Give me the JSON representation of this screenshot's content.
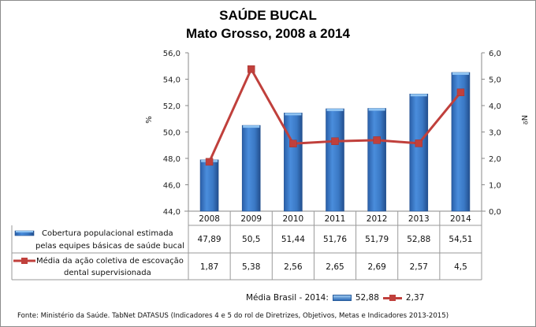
{
  "title": "SAÚDE BUCAL",
  "subtitle": "Mato Grosso, 2008 a 2014",
  "axes": {
    "left_label": "%",
    "right_label": "Nº",
    "left_ticks": [
      "56,0",
      "54,0",
      "52,0",
      "50,0",
      "48,0",
      "46,0",
      "44,0"
    ],
    "right_ticks": [
      "6,0",
      "5,0",
      "4,0",
      "3,0",
      "2,0",
      "1,0",
      "0,0"
    ]
  },
  "table": {
    "years": [
      "2008",
      "2009",
      "2010",
      "2011",
      "2012",
      "2013",
      "2014"
    ],
    "row1_label_a": "Cobertura populacional estimada",
    "row1_label_b": "pelas equipes básicas de saúde bucal",
    "row1_values": [
      "47,89",
      "50,5",
      "51,44",
      "51,76",
      "51,79",
      "52,88",
      "54,51"
    ],
    "row2_label_a": "Média da ação coletiva de escovação",
    "row2_label_b": "dental supervisionada",
    "row2_values": [
      "1,87",
      "5,38",
      "2,56",
      "2,65",
      "2,69",
      "2,57",
      "4,5"
    ]
  },
  "brasil": {
    "label": "Média Brasil - 2014:",
    "bar_value": "52,88",
    "line_value": "2,37"
  },
  "fonte": "Fonte: Ministério da Saúde. TabNet DATASUS (Indicadores 4 e 5 do rol de Diretrizes, Objetivos, Metas e Indicadores 2013-2015)",
  "colors": {
    "bar": "#3a7bc8",
    "line": "#c0403c"
  },
  "chart_data": {
    "type": "bar",
    "title": "SAÚDE BUCAL — Mato Grosso, 2008 a 2014",
    "categories": [
      "2008",
      "2009",
      "2010",
      "2011",
      "2012",
      "2013",
      "2014"
    ],
    "series": [
      {
        "name": "Cobertura populacional estimada pelas equipes básicas de saúde bucal",
        "type": "bar",
        "axis": "left",
        "values": [
          47.89,
          50.5,
          51.44,
          51.76,
          51.79,
          52.88,
          54.51
        ]
      },
      {
        "name": "Média da ação coletiva de escovação dental supervisionada",
        "type": "line",
        "axis": "right",
        "values": [
          1.87,
          5.38,
          2.56,
          2.65,
          2.69,
          2.57,
          4.5
        ]
      }
    ],
    "ylabel": "%",
    "ylim": [
      44,
      56
    ],
    "y2label": "Nº",
    "y2lim": [
      0,
      6
    ],
    "grid": false,
    "legend_position": "data table below chart",
    "annotations": [
      "Média Brasil - 2014: 52,88 (cobertura), 2,37 (escovação)"
    ]
  }
}
